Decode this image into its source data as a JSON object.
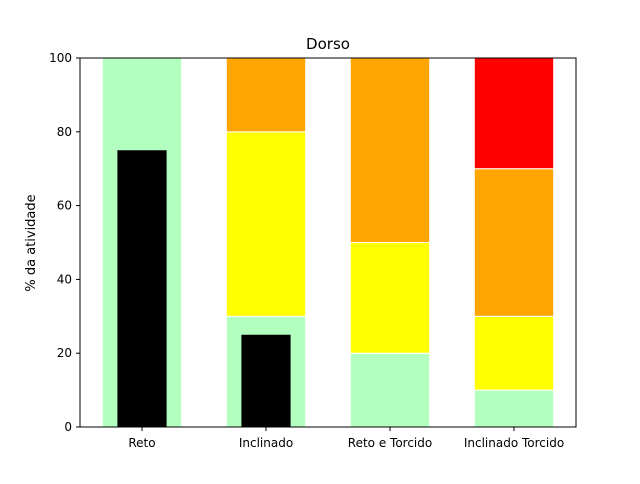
{
  "chart_data": {
    "type": "bar",
    "title": "Dorso",
    "xlabel": "",
    "ylabel": "% da atividade",
    "ylim": [
      0,
      100
    ],
    "yticks": [
      0,
      20,
      40,
      60,
      80,
      100
    ],
    "categories": [
      "Reto",
      "Inclinado",
      "Reto e Torcido",
      "Inclinado Torcido"
    ],
    "stacked": true,
    "grid": false,
    "legend": "none",
    "series": [
      {
        "values": [
          100,
          30,
          20,
          10
        ],
        "color": "#b3ffbf"
      },
      {
        "values": [
          0,
          50,
          30,
          20
        ],
        "color": "#ffff00"
      },
      {
        "values": [
          0,
          20,
          50,
          40
        ],
        "color": "#ffa500"
      },
      {
        "values": [
          0,
          0,
          0,
          30
        ],
        "color": "#ff0000"
      }
    ],
    "overlay": {
      "values": [
        75,
        25,
        0,
        0
      ],
      "color": "#000000"
    }
  }
}
